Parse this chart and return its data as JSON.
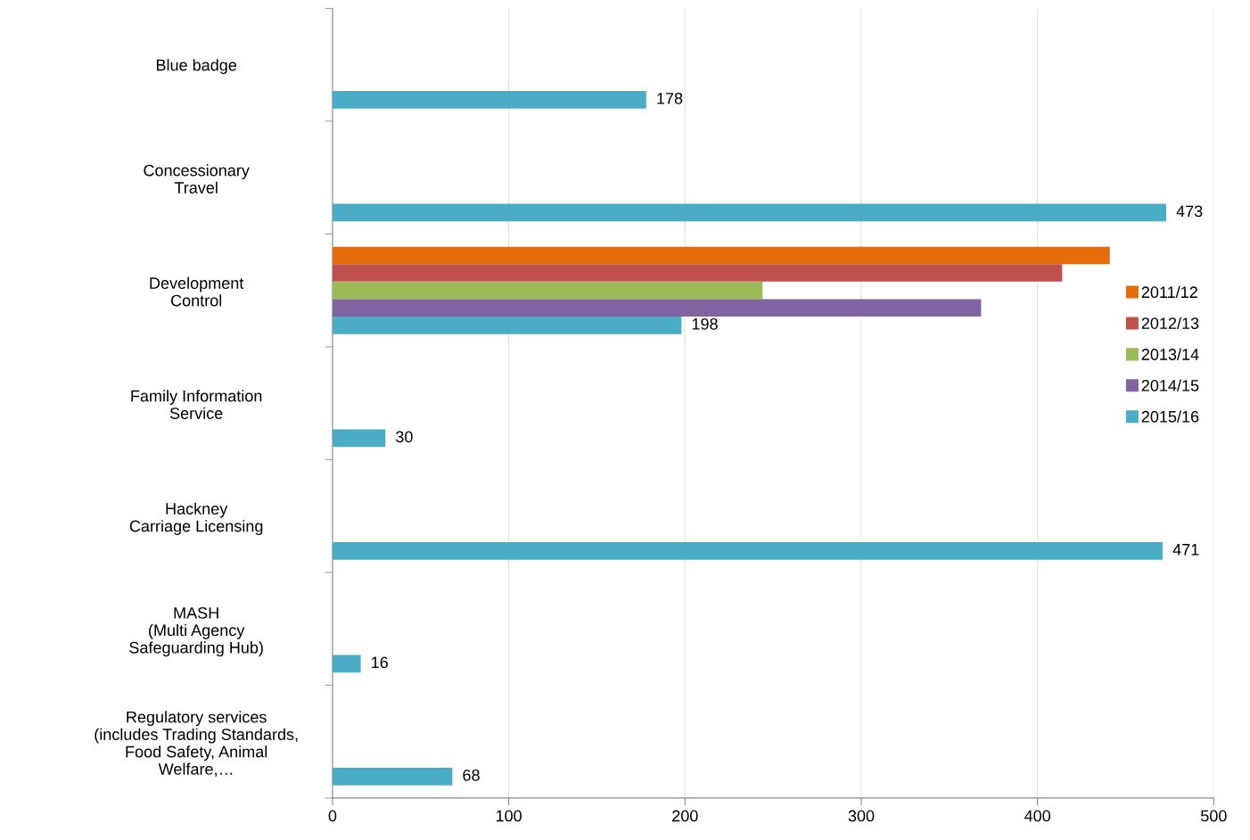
{
  "chart_data": {
    "type": "bar",
    "orientation": "horizontal",
    "categories": [
      "Blue badge",
      "Concessionary\nTravel",
      "Development\nControl",
      "Family Information\nService",
      "Hackney\nCarriage Licensing",
      "MASH\n(Multi Agency\nSafeguarding Hub)",
      "Regulatory services\n(includes Trading Standards,\nFood Safety, Animal\nWelfare,…"
    ],
    "series": [
      {
        "name": "2011/12",
        "color": "#e46c0a",
        "values": [
          null,
          null,
          441,
          null,
          null,
          null,
          null
        ]
      },
      {
        "name": "2012/13",
        "color": "#c0504d",
        "values": [
          null,
          null,
          414,
          null,
          null,
          null,
          null
        ]
      },
      {
        "name": "2013/14",
        "color": "#9bbb59",
        "values": [
          null,
          null,
          244,
          null,
          null,
          null,
          null
        ]
      },
      {
        "name": "2014/15",
        "color": "#8064a2",
        "values": [
          null,
          null,
          368,
          null,
          null,
          null,
          null
        ]
      },
      {
        "name": "2015/16",
        "color": "#4bacc6",
        "values": [
          178,
          473,
          198,
          30,
          471,
          16,
          68
        ],
        "value_labels": [
          "178",
          "473",
          "198",
          "30",
          "471",
          "16",
          "68"
        ]
      }
    ],
    "xlim": [
      0,
      500
    ],
    "xticks": [
      0,
      100,
      200,
      300,
      400,
      500
    ],
    "grid": "x",
    "legend": "right"
  }
}
